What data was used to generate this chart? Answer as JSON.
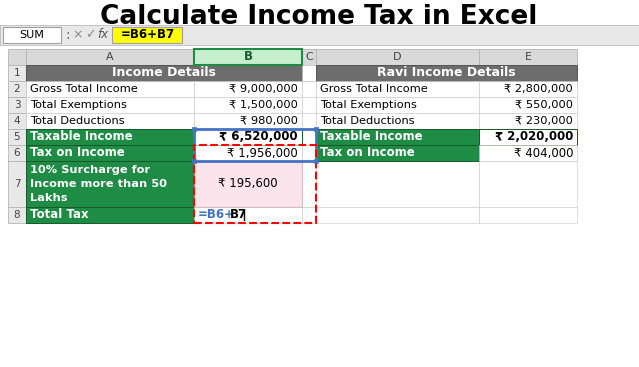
{
  "title": "Calculate Income Tax in Excel",
  "formula_bar_text": "=B6+B7",
  "formula_name_box": "SUM",
  "left_table_header": "Income Details",
  "right_table_header": "Ravi Income Details",
  "green_color": "#1e8c45",
  "header_gray": "#6d6d6d",
  "col_header_bg": "#d9d9d9",
  "yellow_bg": "#ffff00",
  "pink_bg": "#fce4ec",
  "blue_border": "#4472c4",
  "red_border": "#ff0000"
}
